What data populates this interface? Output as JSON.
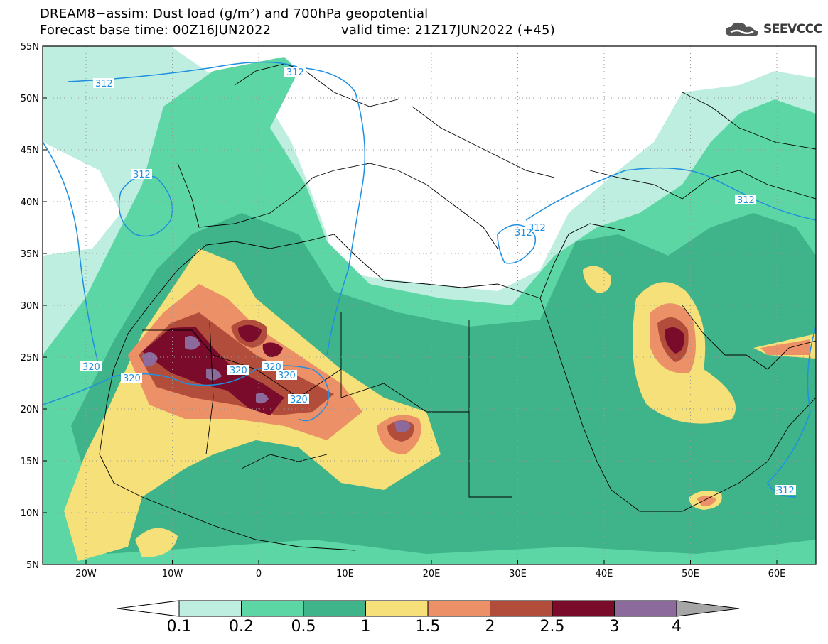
{
  "title_line1": "DREAM8−assim: Dust load (g/m²) and 700hPa geopotential",
  "title_line2a": "Forecast base time: 00Z16JUN2022",
  "title_line2b": "valid time: 21Z17JUN2022 (+45)",
  "logo_text": "SEEVCCC",
  "lat_labels": [
    "55N",
    "50N",
    "45N",
    "40N",
    "35N",
    "30N",
    "25N",
    "20N",
    "15N",
    "10N",
    "5N"
  ],
  "lon_labels": [
    "20W",
    "10W",
    "0",
    "10E",
    "20E",
    "30E",
    "40E",
    "50E",
    "60E"
  ],
  "contour_labels": [
    "312",
    "312",
    "312",
    "312",
    "312",
    "312",
    "312",
    "320",
    "320",
    "320",
    "320",
    "320",
    "320"
  ],
  "colorbar": {
    "labels": [
      "0.1",
      "0.2",
      "0.5",
      "1",
      "1.5",
      "2",
      "2.5",
      "3",
      "4"
    ],
    "colors": [
      "#ffffff",
      "#bdeee0",
      "#5dd6a5",
      "#3fb38a",
      "#f5e07a",
      "#ec9067",
      "#b24d3c",
      "#7a0b2a",
      "#8c6a9b",
      "#a6a6a6"
    ]
  }
}
